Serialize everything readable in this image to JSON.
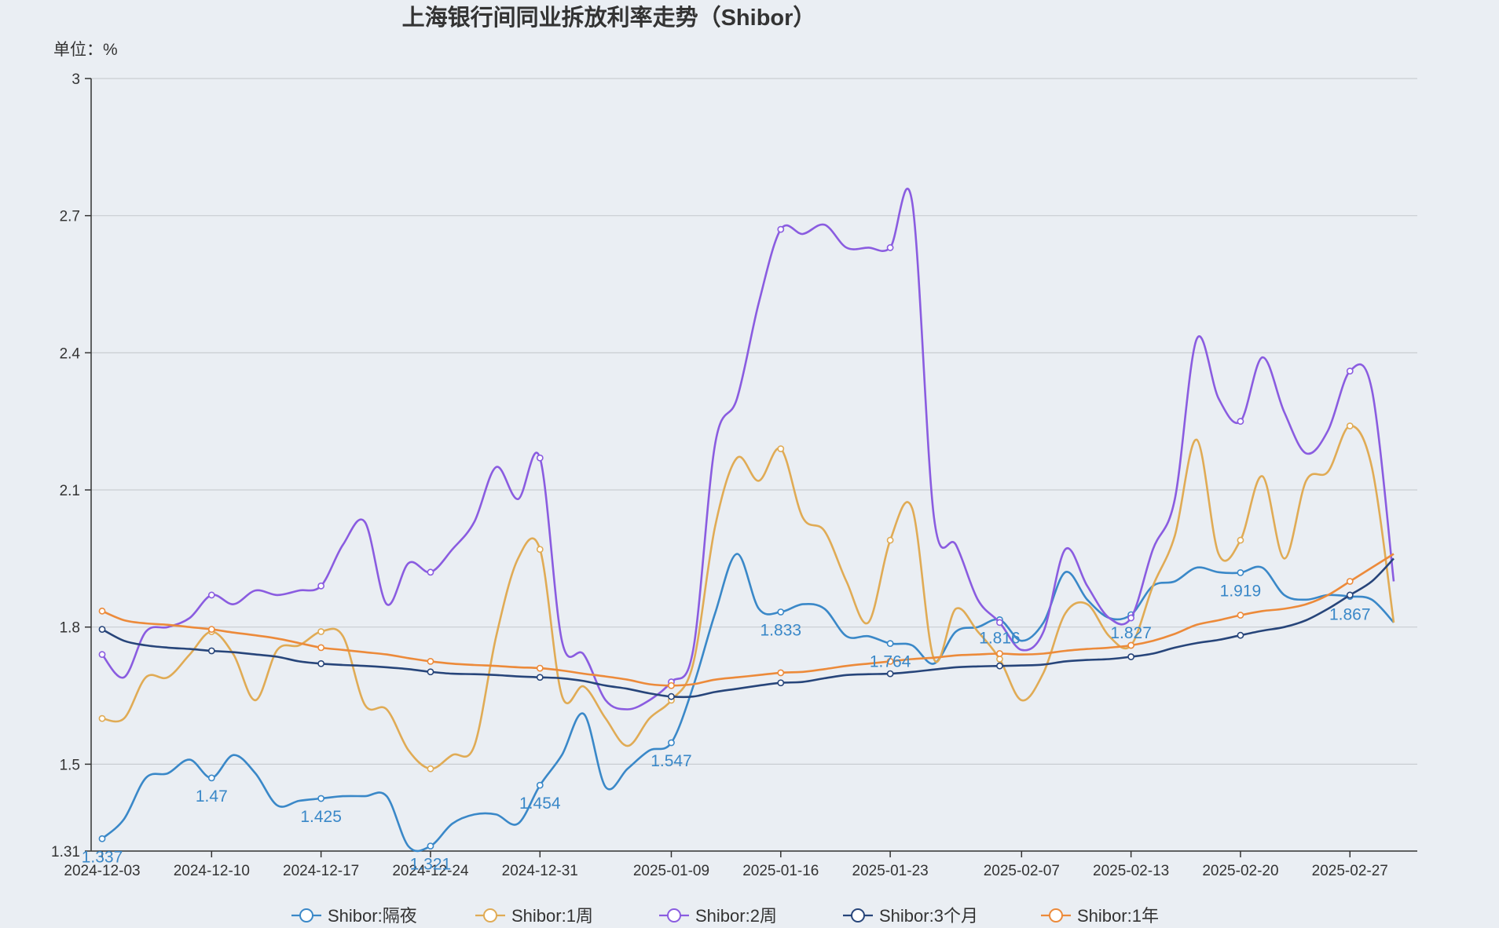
{
  "chart_data": {
    "type": "line",
    "title": "上海银行间同业拆放利率走势（Shibor）",
    "unit_label": "单位：%",
    "ylim": [
      1.31,
      3
    ],
    "y_ticks": [
      "1.31",
      "1.5",
      "1.8",
      "2.1",
      "2.4",
      "2.7",
      "3"
    ],
    "y_tick_values": [
      1.31,
      1.5,
      1.8,
      2.1,
      2.4,
      2.7,
      3
    ],
    "grid": true,
    "legend_position": "bottom",
    "x": [
      "2024-12-03",
      "2024-12-04",
      "2024-12-05",
      "2024-12-06",
      "2024-12-09",
      "2024-12-10",
      "2024-12-11",
      "2024-12-12",
      "2024-12-13",
      "2024-12-16",
      "2024-12-17",
      "2024-12-18",
      "2024-12-19",
      "2024-12-20",
      "2024-12-23",
      "2024-12-24",
      "2024-12-25",
      "2024-12-26",
      "2024-12-27",
      "2024-12-30",
      "2024-12-31",
      "2025-01-02",
      "2025-01-03",
      "2025-01-06",
      "2025-01-07",
      "2025-01-08",
      "2025-01-09",
      "2025-01-10",
      "2025-01-13",
      "2025-01-14",
      "2025-01-15",
      "2025-01-16",
      "2025-01-17",
      "2025-01-20",
      "2025-01-21",
      "2025-01-22",
      "2025-01-23",
      "2025-01-24",
      "2025-01-26",
      "2025-01-27",
      "2025-02-05",
      "2025-02-06",
      "2025-02-07",
      "2025-02-08",
      "2025-02-10",
      "2025-02-11",
      "2025-02-12",
      "2025-02-13",
      "2025-02-14",
      "2025-02-17",
      "2025-02-18",
      "2025-02-19",
      "2025-02-20",
      "2025-02-21",
      "2025-02-24",
      "2025-02-25",
      "2025-02-26",
      "2025-02-27",
      "2025-02-28",
      "2025-03-03"
    ],
    "x_ticks": [
      "2024-12-03",
      "2024-12-10",
      "2024-12-17",
      "2024-12-24",
      "2024-12-31",
      "2025-01-09",
      "2025-01-16",
      "2025-01-23",
      "2025-02-07",
      "2025-02-13",
      "2025-02-20",
      "2025-02-27"
    ],
    "series": [
      {
        "name": "Shibor:隔夜",
        "color": "#3a88c8",
        "values": [
          1.337,
          1.38,
          1.47,
          1.48,
          1.51,
          1.47,
          1.52,
          1.48,
          1.41,
          1.42,
          1.425,
          1.43,
          1.43,
          1.43,
          1.32,
          1.321,
          1.37,
          1.39,
          1.39,
          1.37,
          1.454,
          1.52,
          1.61,
          1.45,
          1.49,
          1.53,
          1.547,
          1.67,
          1.83,
          1.96,
          1.84,
          1.833,
          1.85,
          1.84,
          1.78,
          1.78,
          1.764,
          1.76,
          1.72,
          1.79,
          1.8,
          1.816,
          1.77,
          1.81,
          1.92,
          1.86,
          1.82,
          1.827,
          1.89,
          1.9,
          1.93,
          1.92,
          1.919,
          1.93,
          1.87,
          1.86,
          1.87,
          1.867,
          1.86,
          1.81
        ],
        "labels": {
          "0": "1.337",
          "5": "1.47",
          "10": "1.425",
          "15": "1.321",
          "20": "1.454",
          "26": "1.547",
          "31": "1.833",
          "36": "1.764",
          "41": "1.816",
          "47": "1.827",
          "52": "1.919",
          "57": "1.867"
        }
      },
      {
        "name": "Shibor:1周",
        "color": "#e0ab55",
        "values": [
          1.6,
          1.6,
          1.69,
          1.69,
          1.74,
          1.79,
          1.74,
          1.64,
          1.75,
          1.76,
          1.79,
          1.78,
          1.63,
          1.62,
          1.53,
          1.49,
          1.52,
          1.54,
          1.78,
          1.95,
          1.97,
          1.65,
          1.67,
          1.6,
          1.54,
          1.6,
          1.64,
          1.72,
          2.02,
          2.17,
          2.12,
          2.19,
          2.04,
          2.01,
          1.9,
          1.81,
          1.99,
          2.06,
          1.73,
          1.84,
          1.79,
          1.73,
          1.64,
          1.7,
          1.83,
          1.85,
          1.78,
          1.76,
          1.89,
          2.0,
          2.21,
          1.96,
          1.99,
          2.13,
          1.95,
          2.12,
          2.14,
          2.24,
          2.15,
          1.81
        ],
        "labels": {}
      },
      {
        "name": "Shibor:2周",
        "color": "#8a5ce0",
        "values": [
          1.74,
          1.69,
          1.79,
          1.8,
          1.82,
          1.87,
          1.85,
          1.88,
          1.87,
          1.88,
          1.89,
          1.98,
          2.03,
          1.85,
          1.94,
          1.92,
          1.97,
          2.03,
          2.15,
          2.08,
          2.17,
          1.77,
          1.74,
          1.64,
          1.62,
          1.64,
          1.68,
          1.75,
          2.2,
          2.3,
          2.51,
          2.67,
          2.66,
          2.68,
          2.63,
          2.63,
          2.63,
          2.73,
          2.04,
          1.98,
          1.86,
          1.81,
          1.75,
          1.79,
          1.97,
          1.89,
          1.82,
          1.82,
          1.97,
          2.08,
          2.43,
          2.3,
          2.25,
          2.39,
          2.27,
          2.18,
          2.23,
          2.36,
          2.32,
          1.9
        ],
        "labels": {}
      },
      {
        "name": "Shibor:3个月",
        "color": "#27457a",
        "values": [
          1.795,
          1.77,
          1.76,
          1.755,
          1.752,
          1.748,
          1.745,
          1.74,
          1.735,
          1.725,
          1.72,
          1.717,
          1.715,
          1.712,
          1.708,
          1.702,
          1.698,
          1.697,
          1.695,
          1.692,
          1.69,
          1.688,
          1.682,
          1.672,
          1.665,
          1.655,
          1.648,
          1.648,
          1.658,
          1.665,
          1.672,
          1.678,
          1.68,
          1.688,
          1.695,
          1.697,
          1.698,
          1.702,
          1.707,
          1.712,
          1.714,
          1.715,
          1.716,
          1.718,
          1.725,
          1.728,
          1.73,
          1.735,
          1.742,
          1.755,
          1.765,
          1.772,
          1.782,
          1.792,
          1.8,
          1.815,
          1.84,
          1.87,
          1.9,
          1.95
        ],
        "labels": {}
      },
      {
        "name": "Shibor:1年",
        "color": "#ec8a3a",
        "values": [
          1.835,
          1.815,
          1.808,
          1.805,
          1.8,
          1.795,
          1.788,
          1.782,
          1.775,
          1.765,
          1.755,
          1.75,
          1.745,
          1.74,
          1.732,
          1.725,
          1.72,
          1.717,
          1.715,
          1.712,
          1.71,
          1.705,
          1.698,
          1.692,
          1.685,
          1.675,
          1.672,
          1.675,
          1.685,
          1.69,
          1.695,
          1.7,
          1.702,
          1.708,
          1.715,
          1.72,
          1.725,
          1.73,
          1.733,
          1.738,
          1.74,
          1.742,
          1.74,
          1.742,
          1.748,
          1.752,
          1.755,
          1.76,
          1.77,
          1.785,
          1.805,
          1.815,
          1.826,
          1.835,
          1.84,
          1.85,
          1.87,
          1.9,
          1.93,
          1.96
        ],
        "labels": {}
      }
    ]
  }
}
